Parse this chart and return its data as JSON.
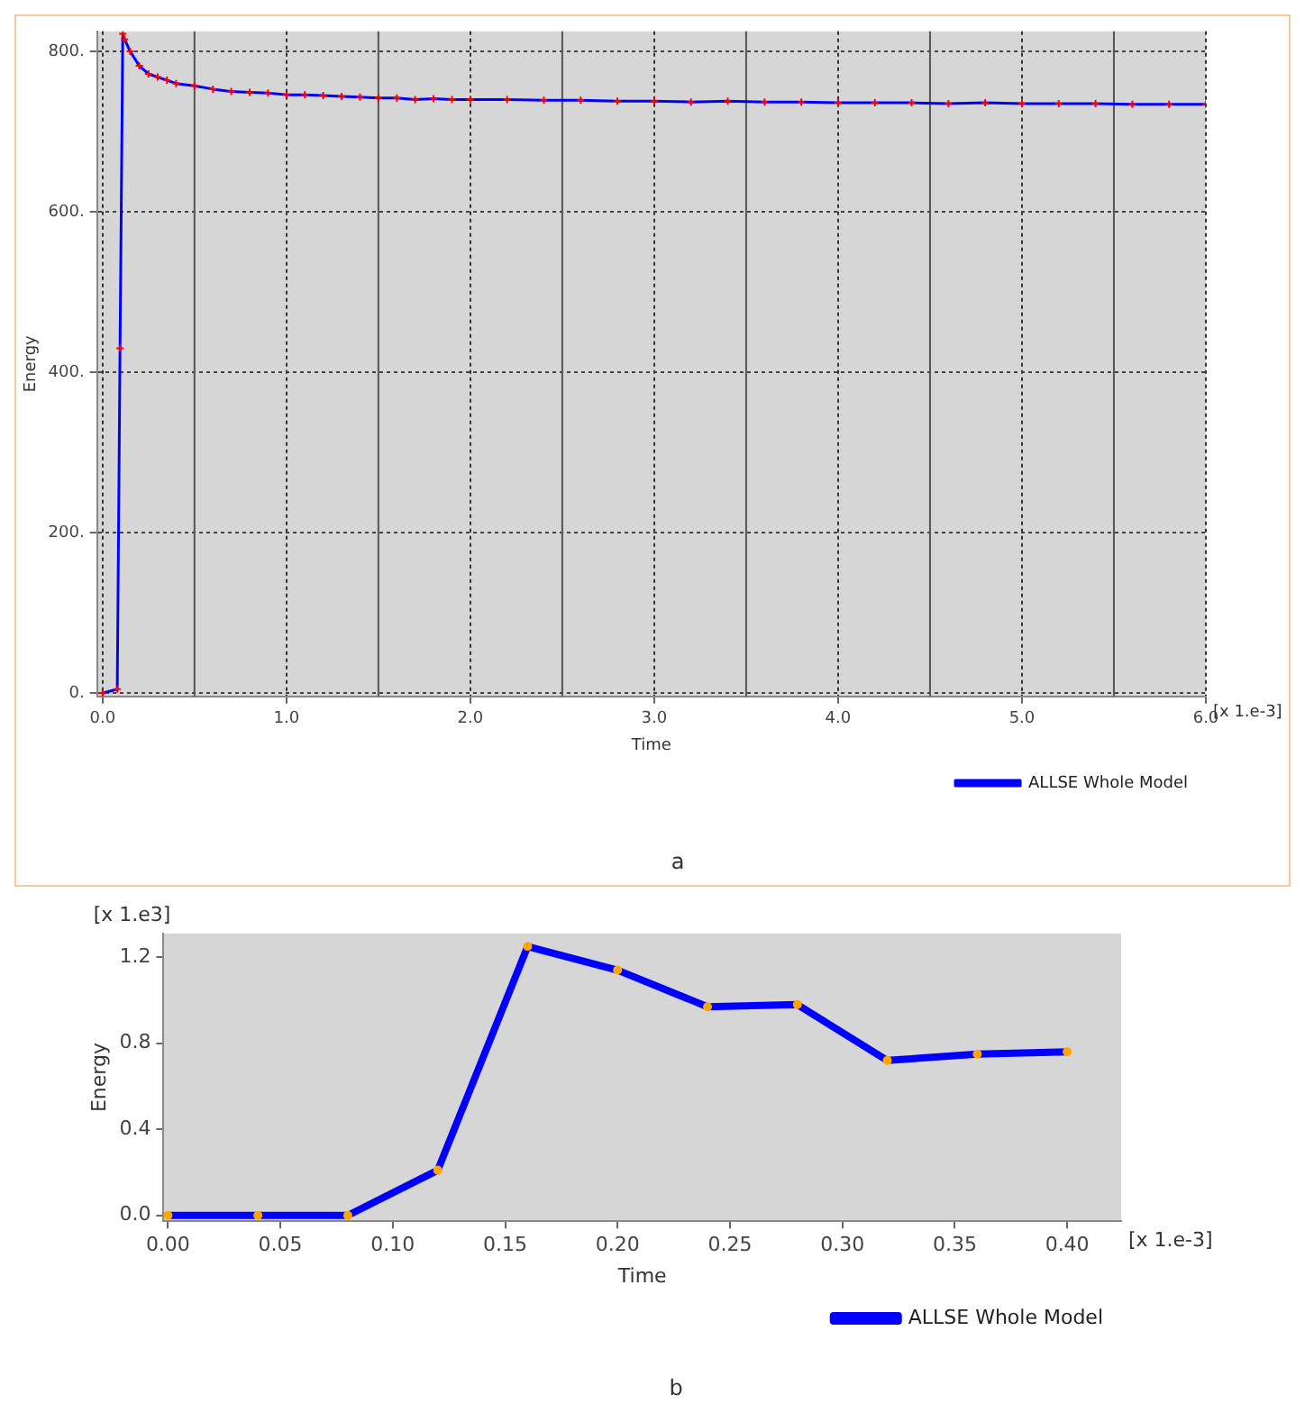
{
  "chart_data": [
    {
      "type": "line",
      "xlabel": "Time",
      "ylabel": "Energy",
      "x": [
        0,
        0.08,
        0.095,
        0.11,
        0.12,
        0.15,
        0.2,
        0.25,
        0.3,
        0.35,
        0.4,
        0.5,
        0.6,
        0.7,
        0.8,
        0.9,
        1.0,
        1.1,
        1.2,
        1.3,
        1.4,
        1.5,
        1.6,
        1.7,
        1.8,
        1.9,
        2.0,
        2.2,
        2.4,
        2.6,
        2.8,
        3.0,
        3.2,
        3.4,
        3.6,
        3.8,
        4.0,
        4.2,
        4.4,
        4.6,
        4.8,
        5.0,
        5.2,
        5.4,
        5.6,
        5.8,
        6.0
      ],
      "series": [
        {
          "name": "ALLSE Whole Model",
          "color": "#0000ff",
          "values": [
            0,
            5,
            430,
            822,
            815,
            800,
            782,
            772,
            768,
            764,
            760,
            757,
            753,
            750,
            749,
            748,
            746,
            746,
            745,
            744,
            743,
            742,
            742,
            740,
            741,
            740,
            740,
            740,
            739,
            739,
            738,
            738,
            737,
            738,
            737,
            737,
            736,
            736,
            736,
            735,
            736,
            735,
            735,
            735,
            734,
            734,
            734
          ]
        }
      ],
      "xlim": [
        -0.03,
        6.0
      ],
      "ylim": [
        -4,
        825
      ],
      "xticks": [
        {
          "value": 0,
          "label": "0.0"
        },
        {
          "value": 1,
          "label": "1.0"
        },
        {
          "value": 2,
          "label": "2.0"
        },
        {
          "value": 3,
          "label": "3.0"
        },
        {
          "value": 4,
          "label": "4.0"
        },
        {
          "value": 5,
          "label": "5.0"
        },
        {
          "value": 6,
          "label": "6.0"
        }
      ],
      "yticks": [
        {
          "value": 0,
          "label": "0."
        },
        {
          "value": 200,
          "label": "200."
        },
        {
          "value": 400,
          "label": "400."
        },
        {
          "value": 600,
          "label": "600."
        },
        {
          "value": 800,
          "label": "800."
        }
      ],
      "ref_lines": [
        {
          "axis": "x",
          "value": 0.5,
          "color": "#555555",
          "line_style": "solid"
        },
        {
          "axis": "x",
          "value": 1.5,
          "color": "#555555",
          "line_style": "solid"
        },
        {
          "axis": "x",
          "value": 2.5,
          "color": "#555555",
          "line_style": "solid"
        },
        {
          "axis": "x",
          "value": 3.5,
          "color": "#555555",
          "line_style": "solid"
        },
        {
          "axis": "x",
          "value": 4.5,
          "color": "#555555",
          "line_style": "solid"
        },
        {
          "axis": "x",
          "value": 5.5,
          "color": "#555555",
          "line_style": "solid"
        }
      ],
      "grid": true,
      "legend": "bottom right",
      "marker": "cross",
      "line_style": "solid",
      "annotations": [
        "[x 1.e-3]",
        "a"
      ]
    },
    {
      "type": "line",
      "xlabel": "Time",
      "ylabel": "Energy",
      "x": [
        0,
        0.04,
        0.08,
        0.12,
        0.16,
        0.2,
        0.24,
        0.28,
        0.32,
        0.36,
        0.4
      ],
      "series": [
        {
          "name": "ALLSE Whole Model",
          "color": "#0000ff",
          "values": [
            0,
            0,
            0,
            0.21,
            1.25,
            1.14,
            0.97,
            0.98,
            0.72,
            0.75,
            0.76
          ]
        }
      ],
      "xlim": [
        -0.002,
        0.424
      ],
      "ylim": [
        -0.027,
        1.31
      ],
      "xticks": [
        {
          "value": 0,
          "label": "0.00"
        },
        {
          "value": 0.05,
          "label": "0.05"
        },
        {
          "value": 0.1,
          "label": "0.10"
        },
        {
          "value": 0.15,
          "label": "0.15"
        },
        {
          "value": 0.2,
          "label": "0.20"
        },
        {
          "value": 0.25,
          "label": "0.25"
        },
        {
          "value": 0.3,
          "label": "0.30"
        },
        {
          "value": 0.35,
          "label": "0.35"
        },
        {
          "value": 0.4,
          "label": "0.40"
        }
      ],
      "yticks": [
        {
          "value": 0,
          "label": "0.0"
        },
        {
          "value": 0.4,
          "label": "0.4"
        },
        {
          "value": 0.8,
          "label": "0.8"
        },
        {
          "value": 1.2,
          "label": "1.2"
        }
      ],
      "legend": "bottom right",
      "marker": "circle",
      "line_style": "solid",
      "annotations": [
        "[x 1.e3]",
        "[x 1.e-3]",
        "b"
      ]
    }
  ]
}
